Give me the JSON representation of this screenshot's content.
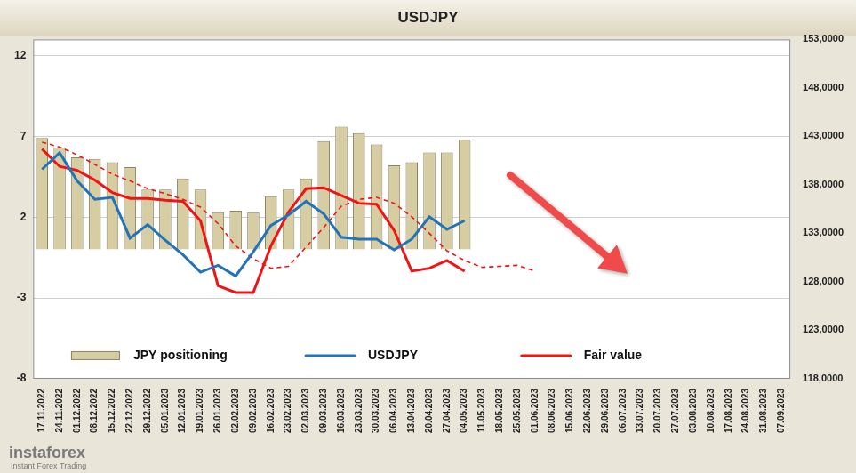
{
  "chart_data": {
    "type": "bar",
    "title": "USDJPY",
    "categories": [
      "17.11.2022",
      "24.11.2022",
      "01.12.2022",
      "08.12.2022",
      "15.12.2022",
      "22.12.2022",
      "29.12.2022",
      "05.01.2023",
      "12.01.2023",
      "19.01.2023",
      "26.01.2023",
      "02.02.2023",
      "09.02.2023",
      "16.02.2023",
      "23.02.2023",
      "02.03.2023",
      "09.03.2023",
      "16.03.2023",
      "23.03.2023",
      "30.03.2023",
      "06.04.2023",
      "13.04.2023",
      "20.04.2023",
      "27.04.2023",
      "04.05.2023",
      "11.05.2023",
      "18.05.2023",
      "25.05.2023",
      "01.06.2023",
      "08.06.2023",
      "15.06.2023",
      "22.06.2023",
      "29.06.2023",
      "06.07.2023",
      "13.07.2023",
      "20.07.2023",
      "27.07.2023",
      "03.08.2023",
      "10.08.2023",
      "17.08.2023",
      "24.08.2023",
      "31.08.2023",
      "07.09.2023"
    ],
    "series": [
      {
        "name": "JPY positioning",
        "type": "bar",
        "color": "#d6cda3",
        "values": [
          6.9,
          6.3,
          5.7,
          5.6,
          5.4,
          5.1,
          3.7,
          3.7,
          4.4,
          3.7,
          2.3,
          2.4,
          2.3,
          3.3,
          3.7,
          4.4,
          6.7,
          7.6,
          7.2,
          6.5,
          5.2,
          5.4,
          6.0,
          6.0,
          6.8,
          null,
          null,
          null,
          null,
          null,
          null,
          null,
          null,
          null,
          null,
          null,
          null,
          null,
          null,
          null,
          null,
          null,
          null
        ]
      },
      {
        "name": "USDJPY",
        "type": "line",
        "color": "#2373b9",
        "axis": "y2",
        "values": [
          139.6,
          141.3,
          138.4,
          136.5,
          136.7,
          132.5,
          133.9,
          132.3,
          130.8,
          129.0,
          129.7,
          128.6,
          131.1,
          133.8,
          134.9,
          136.3,
          135.0,
          132.6,
          132.4,
          132.4,
          131.3,
          132.4,
          134.7,
          133.4,
          134.3,
          null,
          null,
          null,
          null,
          null,
          null,
          null,
          null,
          null,
          null,
          null,
          null,
          null,
          null,
          null,
          null,
          null,
          null
        ]
      },
      {
        "name": "Fair value",
        "type": "line",
        "color": "#f01414",
        "axis": "y2",
        "values": [
          141.7,
          139.9,
          139.5,
          138.5,
          137.2,
          136.6,
          136.6,
          136.4,
          136.3,
          134.3,
          127.6,
          126.9,
          126.9,
          131.7,
          135.2,
          137.6,
          137.7,
          136.9,
          136.1,
          136.0,
          133.3,
          129.1,
          129.4,
          130.2,
          129.1,
          null,
          null,
          null,
          null,
          null,
          null,
          null,
          null,
          null,
          null,
          null,
          null,
          null,
          null,
          null,
          null,
          null,
          null
        ]
      },
      {
        "type": "line",
        "color": "#f01414",
        "axis": "y2",
        "line_style": "dashed",
        "values": [
          142.4,
          141.9,
          141.1,
          140.1,
          139.1,
          138.4,
          137.6,
          137.1,
          136.5,
          135.7,
          134.0,
          131.7,
          130.4,
          129.4,
          129.6,
          131.6,
          133.6,
          135.8,
          136.5,
          136.7,
          136.1,
          134.7,
          133.0,
          131.2,
          130.2,
          129.5,
          129.6,
          129.7,
          129.1,
          null,
          null,
          null,
          null,
          null,
          null,
          null,
          null,
          null,
          null,
          null,
          null,
          null,
          null
        ]
      }
    ],
    "ylim": [
      -8,
      13
    ],
    "yticks": [
      -8,
      -3,
      2,
      7,
      12
    ],
    "y2lim": [
      118,
      153
    ],
    "y2ticks": [
      {
        "value": 118,
        "label": "118,0000"
      },
      {
        "value": 123,
        "label": "123,0000"
      },
      {
        "value": 128,
        "label": "128,0000"
      },
      {
        "value": 133,
        "label": "133,0000"
      },
      {
        "value": 138,
        "label": "138,0000"
      },
      {
        "value": 143,
        "label": "143,0000"
      },
      {
        "value": 148,
        "label": "148,0000"
      },
      {
        "value": 153,
        "label": "153,0000"
      }
    ],
    "grid": true,
    "legend": "bottom",
    "annotations": [
      "instaforex",
      "Instant Forex Trading"
    ]
  }
}
